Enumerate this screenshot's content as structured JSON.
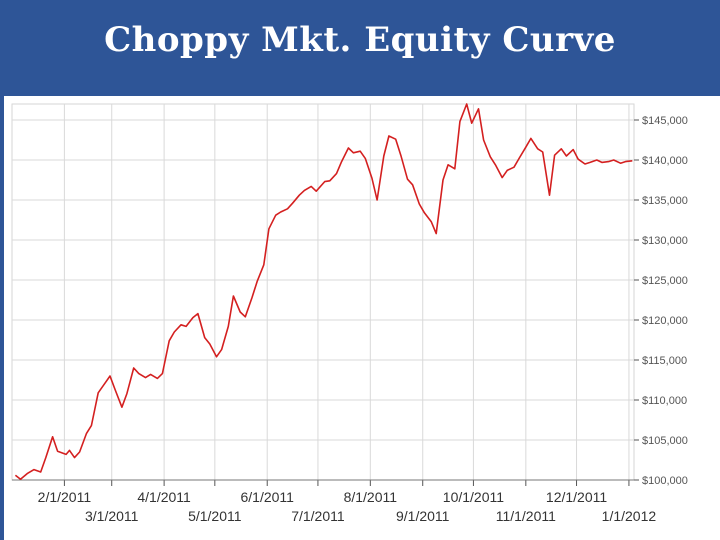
{
  "title": "Choppy Mkt. Equity Curve",
  "chart_data": {
    "type": "line",
    "title": "Choppy Mkt. Equity Curve",
    "xlabel": "",
    "ylabel": "",
    "ylim": [
      100000,
      147000
    ],
    "y_ticks": [
      100000,
      105000,
      110000,
      115000,
      120000,
      125000,
      130000,
      135000,
      140000,
      145000
    ],
    "y_tick_labels": [
      "$100,000",
      "$105,000",
      "$110,000",
      "$115,000",
      "$120,000",
      "$125,000",
      "$130,000",
      "$135,000",
      "$140,000",
      "$145,000"
    ],
    "x_ticks": [
      "2/1/2011",
      "3/1/2011",
      "4/1/2011",
      "5/1/2011",
      "6/1/2011",
      "7/1/2011",
      "8/1/2011",
      "9/1/2011",
      "10/1/2011",
      "11/1/2011",
      "12/1/2011",
      "1/1/2012"
    ],
    "grid": true,
    "line_color": "#d42020",
    "series": [
      {
        "x": [
          "1/3/2011",
          "1/6/2011",
          "1/10/2011",
          "1/14/2011",
          "1/18/2011",
          "1/21/2011",
          "1/25/2011",
          "1/28/2011",
          "2/2/2011",
          "2/4/2011",
          "2/7/2011",
          "2/10/2011",
          "2/14/2011",
          "2/17/2011",
          "2/21/2011",
          "2/24/2011",
          "2/28/2011",
          "3/3/2011",
          "3/7/2011",
          "3/10/2011",
          "3/14/2011",
          "3/17/2011",
          "3/21/2011",
          "3/24/2011",
          "3/28/2011",
          "3/31/2011",
          "4/4/2011",
          "4/7/2011",
          "4/11/2011",
          "4/14/2011",
          "4/18/2011",
          "4/21/2011",
          "4/25/2011",
          "4/28/2011",
          "5/2/2011",
          "5/5/2011",
          "5/9/2011",
          "5/12/2011",
          "5/16/2011",
          "5/19/2011",
          "5/23/2011",
          "5/26/2011",
          "5/30/2011",
          "6/2/2011",
          "6/6/2011",
          "6/9/2011",
          "6/13/2011",
          "6/16/2011",
          "6/20/2011",
          "6/23/2011",
          "6/27/2011",
          "6/30/2011",
          "7/5/2011",
          "7/8/2011",
          "7/12/2011",
          "7/15/2011",
          "7/19/2011",
          "7/22/2011",
          "7/26/2011",
          "7/29/2011",
          "8/2/2011",
          "8/5/2011",
          "8/9/2011",
          "8/12/2011",
          "8/16/2011",
          "8/19/2011",
          "8/23/2011",
          "8/26/2011",
          "8/30/2011",
          "9/2/2011",
          "9/6/2011",
          "9/9/2011",
          "9/13/2011",
          "9/16/2011",
          "9/20/2011",
          "9/23/2011",
          "9/27/2011",
          "9/30/2011",
          "10/4/2011",
          "10/7/2011",
          "10/11/2011",
          "10/14/2011",
          "10/18/2011",
          "10/21/2011",
          "10/25/2011",
          "10/28/2011",
          "11/1/2011",
          "11/4/2011",
          "11/8/2011",
          "11/11/2011",
          "11/15/2011",
          "11/18/2011",
          "11/22/2011",
          "11/25/2011",
          "11/29/2011",
          "12/2/2011",
          "12/6/2011",
          "12/9/2011",
          "12/13/2011",
          "12/16/2011",
          "12/20/2011",
          "12/23/2011",
          "12/27/2011",
          "12/30/2011",
          "1/3/2012"
        ],
        "values": [
          100600,
          100100,
          100800,
          101300,
          101000,
          102800,
          105400,
          103600,
          103200,
          103700,
          102800,
          103500,
          105800,
          106800,
          110900,
          111800,
          113000,
          111300,
          109100,
          110800,
          114000,
          113300,
          112800,
          113200,
          112700,
          113300,
          117400,
          118500,
          119400,
          119200,
          120300,
          120800,
          117800,
          117000,
          115400,
          116300,
          119200,
          123000,
          121000,
          120400,
          122800,
          124800,
          126900,
          131400,
          133100,
          133500,
          133900,
          134600,
          135600,
          136200,
          136700,
          136100,
          137300,
          137400,
          138300,
          139800,
          141500,
          140900,
          141100,
          140200,
          137700,
          135000,
          140500,
          143000,
          142600,
          140600,
          137600,
          136900,
          134500,
          133400,
          132300,
          130800,
          137500,
          139400,
          138900,
          144800,
          147000,
          144600,
          146400,
          142500,
          140400,
          139400,
          137800,
          138700,
          139100,
          140200,
          141600,
          142700,
          141400,
          141000,
          135600,
          140600,
          141400,
          140500,
          141300,
          140100,
          139500,
          139700,
          140000,
          139700,
          139800,
          140000,
          139600,
          139800,
          139900
        ]
      }
    ]
  }
}
